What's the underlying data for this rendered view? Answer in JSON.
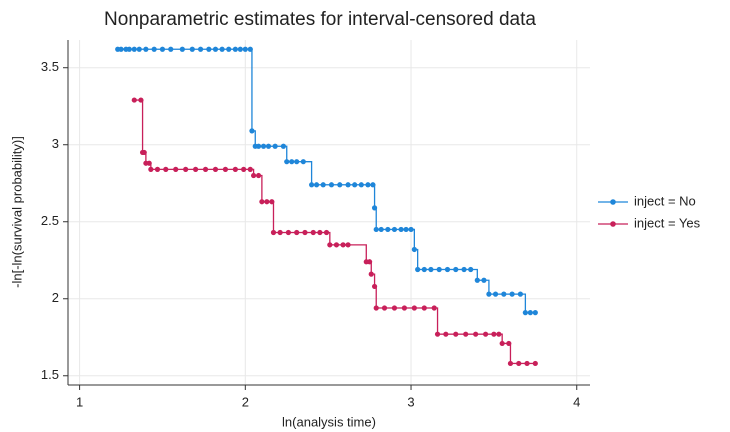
{
  "chart_data": {
    "type": "step",
    "title": "Nonparametric estimates for interval-censored data",
    "x_label": "ln(analysis time)",
    "y_label": "-ln[-ln(survival probability)]",
    "xlim": [
      0.93,
      4.08
    ],
    "ylim": [
      1.44,
      3.68
    ],
    "xticks": [
      1,
      2,
      3,
      4
    ],
    "yticks": [
      1.5,
      2,
      2.5,
      3,
      3.5
    ],
    "grid": true,
    "legend": "right",
    "series": [
      {
        "name": "inject = No",
        "color": "#1f86d9",
        "x": [
          1.23,
          1.25,
          1.28,
          1.3,
          1.33,
          1.36,
          1.4,
          1.45,
          1.5,
          1.55,
          1.62,
          1.68,
          1.73,
          1.78,
          1.82,
          1.86,
          1.9,
          1.94,
          1.97,
          2.0,
          2.03,
          2.04,
          2.06,
          2.08,
          2.11,
          2.14,
          2.18,
          2.23,
          2.25,
          2.28,
          2.31,
          2.35,
          2.4,
          2.43,
          2.47,
          2.52,
          2.57,
          2.62,
          2.66,
          2.7,
          2.74,
          2.77,
          2.78,
          2.79,
          2.82,
          2.86,
          2.9,
          2.94,
          2.97,
          3.0,
          3.02,
          3.04,
          3.08,
          3.12,
          3.17,
          3.22,
          3.27,
          3.32,
          3.36,
          3.4,
          3.44,
          3.47,
          3.51,
          3.56,
          3.61,
          3.66,
          3.69,
          3.72,
          3.75
        ],
        "values": [
          3.62,
          3.62,
          3.62,
          3.62,
          3.62,
          3.62,
          3.62,
          3.62,
          3.62,
          3.62,
          3.62,
          3.62,
          3.62,
          3.62,
          3.62,
          3.62,
          3.62,
          3.62,
          3.62,
          3.62,
          3.62,
          3.09,
          2.99,
          2.99,
          2.99,
          2.99,
          2.99,
          2.99,
          2.89,
          2.89,
          2.89,
          2.89,
          2.74,
          2.74,
          2.74,
          2.74,
          2.74,
          2.74,
          2.74,
          2.74,
          2.74,
          2.74,
          2.59,
          2.45,
          2.45,
          2.45,
          2.45,
          2.45,
          2.45,
          2.45,
          2.32,
          2.19,
          2.19,
          2.19,
          2.19,
          2.19,
          2.19,
          2.19,
          2.19,
          2.12,
          2.12,
          2.03,
          2.03,
          2.03,
          2.03,
          2.03,
          1.91,
          1.91,
          1.91
        ]
      },
      {
        "name": "inject = Yes",
        "color": "#c8205a",
        "x": [
          1.33,
          1.37,
          1.38,
          1.39,
          1.4,
          1.42,
          1.43,
          1.47,
          1.52,
          1.58,
          1.64,
          1.7,
          1.76,
          1.82,
          1.88,
          1.94,
          1.99,
          2.03,
          2.05,
          2.08,
          2.1,
          2.13,
          2.16,
          2.17,
          2.21,
          2.26,
          2.31,
          2.36,
          2.41,
          2.45,
          2.49,
          2.51,
          2.55,
          2.59,
          2.62,
          2.73,
          2.75,
          2.76,
          2.78,
          2.79,
          2.84,
          2.9,
          2.96,
          3.02,
          3.08,
          3.14,
          3.16,
          3.21,
          3.27,
          3.33,
          3.39,
          3.45,
          3.5,
          3.53,
          3.55,
          3.59,
          3.6,
          3.65,
          3.7,
          3.75
        ],
        "values": [
          3.29,
          3.29,
          2.95,
          2.95,
          2.88,
          2.88,
          2.84,
          2.84,
          2.84,
          2.84,
          2.84,
          2.84,
          2.84,
          2.84,
          2.84,
          2.84,
          2.84,
          2.84,
          2.8,
          2.8,
          2.63,
          2.63,
          2.63,
          2.43,
          2.43,
          2.43,
          2.43,
          2.43,
          2.43,
          2.43,
          2.43,
          2.35,
          2.35,
          2.35,
          2.35,
          2.24,
          2.24,
          2.16,
          2.08,
          1.94,
          1.94,
          1.94,
          1.94,
          1.94,
          1.94,
          1.94,
          1.77,
          1.77,
          1.77,
          1.77,
          1.77,
          1.77,
          1.77,
          1.77,
          1.71,
          1.71,
          1.58,
          1.58,
          1.58,
          1.58
        ]
      }
    ]
  }
}
